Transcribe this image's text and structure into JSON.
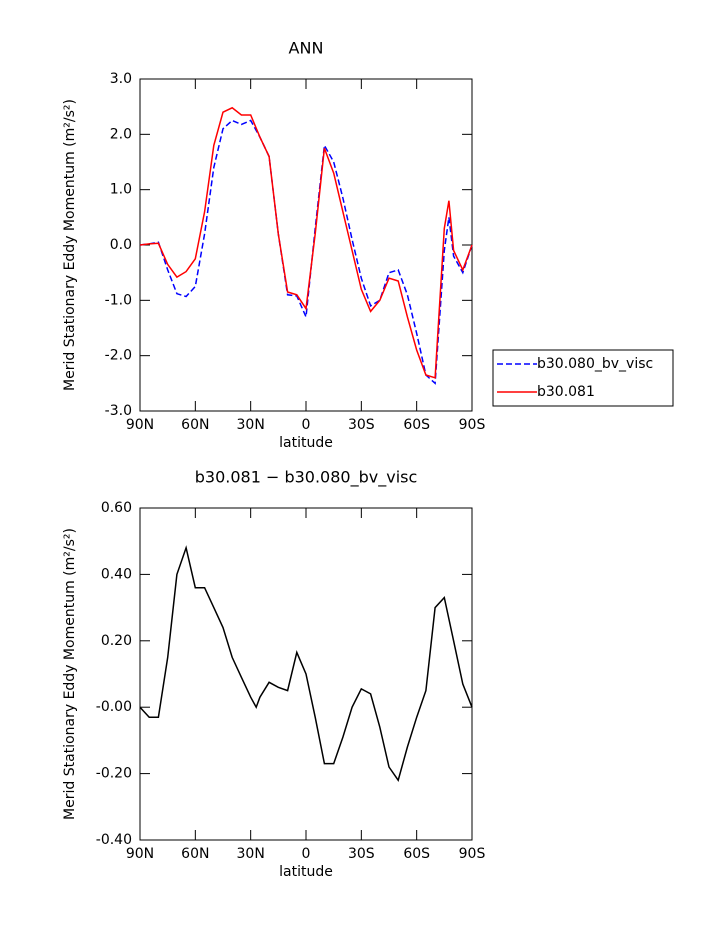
{
  "chart_data": [
    {
      "type": "line",
      "title": "ANN",
      "xlabel": "latitude",
      "ylabel": "Merid Stationary Eddy Momentum (m²/s²)",
      "x": [
        90,
        85,
        80,
        75,
        70,
        65,
        60,
        55,
        50,
        45,
        40,
        35,
        30,
        25,
        20,
        15,
        10,
        5,
        0,
        -5,
        -10,
        -15,
        -20,
        -25,
        -30,
        -35,
        -40,
        -45,
        -50,
        -55,
        -60,
        -65,
        -70,
        -75,
        -77.5,
        -80,
        -85,
        -90
      ],
      "series": [
        {
          "name": "b30.080_bv_visc",
          "color": "#0000ff",
          "style": "dashed",
          "values": [
            0,
            0.02,
            0.05,
            -0.45,
            -0.88,
            -0.93,
            -0.75,
            0.2,
            1.4,
            2.1,
            2.25,
            2.18,
            2.25,
            1.95,
            1.6,
            0.2,
            -0.9,
            -0.92,
            -1.3,
            0.3,
            1.8,
            1.5,
            0.85,
            0.1,
            -0.6,
            -1.1,
            -1.0,
            -0.5,
            -0.45,
            -0.9,
            -1.6,
            -2.35,
            -2.5,
            -0.1,
            0.5,
            -0.2,
            -0.5,
            0
          ]
        },
        {
          "name": "b30.081",
          "color": "#ff0000",
          "style": "solid",
          "values": [
            0,
            0.02,
            0.03,
            -0.35,
            -0.58,
            -0.48,
            -0.25,
            0.6,
            1.8,
            2.4,
            2.48,
            2.35,
            2.35,
            1.95,
            1.6,
            0.2,
            -0.85,
            -0.9,
            -1.15,
            0.2,
            1.75,
            1.3,
            0.6,
            -0.1,
            -0.8,
            -1.2,
            -1.0,
            -0.6,
            -0.65,
            -1.3,
            -1.9,
            -2.35,
            -2.4,
            0.3,
            0.8,
            -0.1,
            -0.45,
            0
          ]
        }
      ],
      "xlim": [
        90,
        -90
      ],
      "xticks": [
        {
          "value": 90,
          "label": "90N"
        },
        {
          "value": 60,
          "label": "60N"
        },
        {
          "value": 30,
          "label": "30N"
        },
        0,
        {
          "value": -30,
          "label": "30S"
        },
        {
          "value": -60,
          "label": "60S"
        },
        {
          "value": -90,
          "label": "90S"
        }
      ],
      "ylim": [
        -3,
        3
      ],
      "yticks": [
        {
          "value": -3,
          "label": "-3.0"
        },
        {
          "value": -2,
          "label": "-2.0"
        },
        {
          "value": -1,
          "label": "-1.0"
        },
        {
          "value": 0,
          "label": "0.0"
        },
        {
          "value": 1,
          "label": "1.0"
        },
        {
          "value": 2,
          "label": "2.0"
        },
        {
          "value": 3,
          "label": "3.0"
        }
      ],
      "legend": "right"
    },
    {
      "type": "line",
      "title": "b30.081 − b30.080_bv_visc",
      "xlabel": "latitude",
      "ylabel": "Merid Stationary Eddy Momentum (m²/s²)",
      "x": [
        90,
        85,
        80,
        75,
        70,
        65,
        60,
        55,
        50,
        45,
        40,
        35,
        30,
        27,
        25,
        20,
        15,
        10,
        5,
        0,
        -5,
        -10,
        -15,
        -20,
        -25,
        -30,
        -35,
        -40,
        -45,
        -50,
        -55,
        -60,
        -65,
        -70,
        -75,
        -80,
        -85,
        -90
      ],
      "values": [
        0,
        -0.03,
        -0.03,
        0.15,
        0.4,
        0.48,
        0.36,
        0.36,
        0.3,
        0.24,
        0.15,
        0.09,
        0.03,
        0,
        0.03,
        0.075,
        0.06,
        0.05,
        0.165,
        0.1,
        -0.03,
        -0.17,
        -0.17,
        -0.09,
        0,
        0.055,
        0.04,
        -0.06,
        -0.18,
        -0.22,
        -0.12,
        -0.03,
        0.05,
        0.3,
        0.33,
        0.2,
        0.07,
        0
      ],
      "color": "#000000",
      "xlim": [
        90,
        -90
      ],
      "xticks": [
        {
          "value": 90,
          "label": "90N"
        },
        {
          "value": 60,
          "label": "60N"
        },
        {
          "value": 30,
          "label": "30N"
        },
        0,
        {
          "value": -30,
          "label": "30S"
        },
        {
          "value": -60,
          "label": "60S"
        },
        {
          "value": -90,
          "label": "90S"
        }
      ],
      "ylim": [
        -0.4,
        0.6
      ],
      "yticks": [
        {
          "value": -0.4,
          "label": "-0.40"
        },
        {
          "value": -0.2,
          "label": "-0.20"
        },
        {
          "value": 0,
          "label": "-0.00"
        },
        {
          "value": 0.2,
          "label": "0.20"
        },
        {
          "value": 0.4,
          "label": "0.40"
        },
        {
          "value": 0.6,
          "label": "0.60"
        }
      ]
    }
  ]
}
